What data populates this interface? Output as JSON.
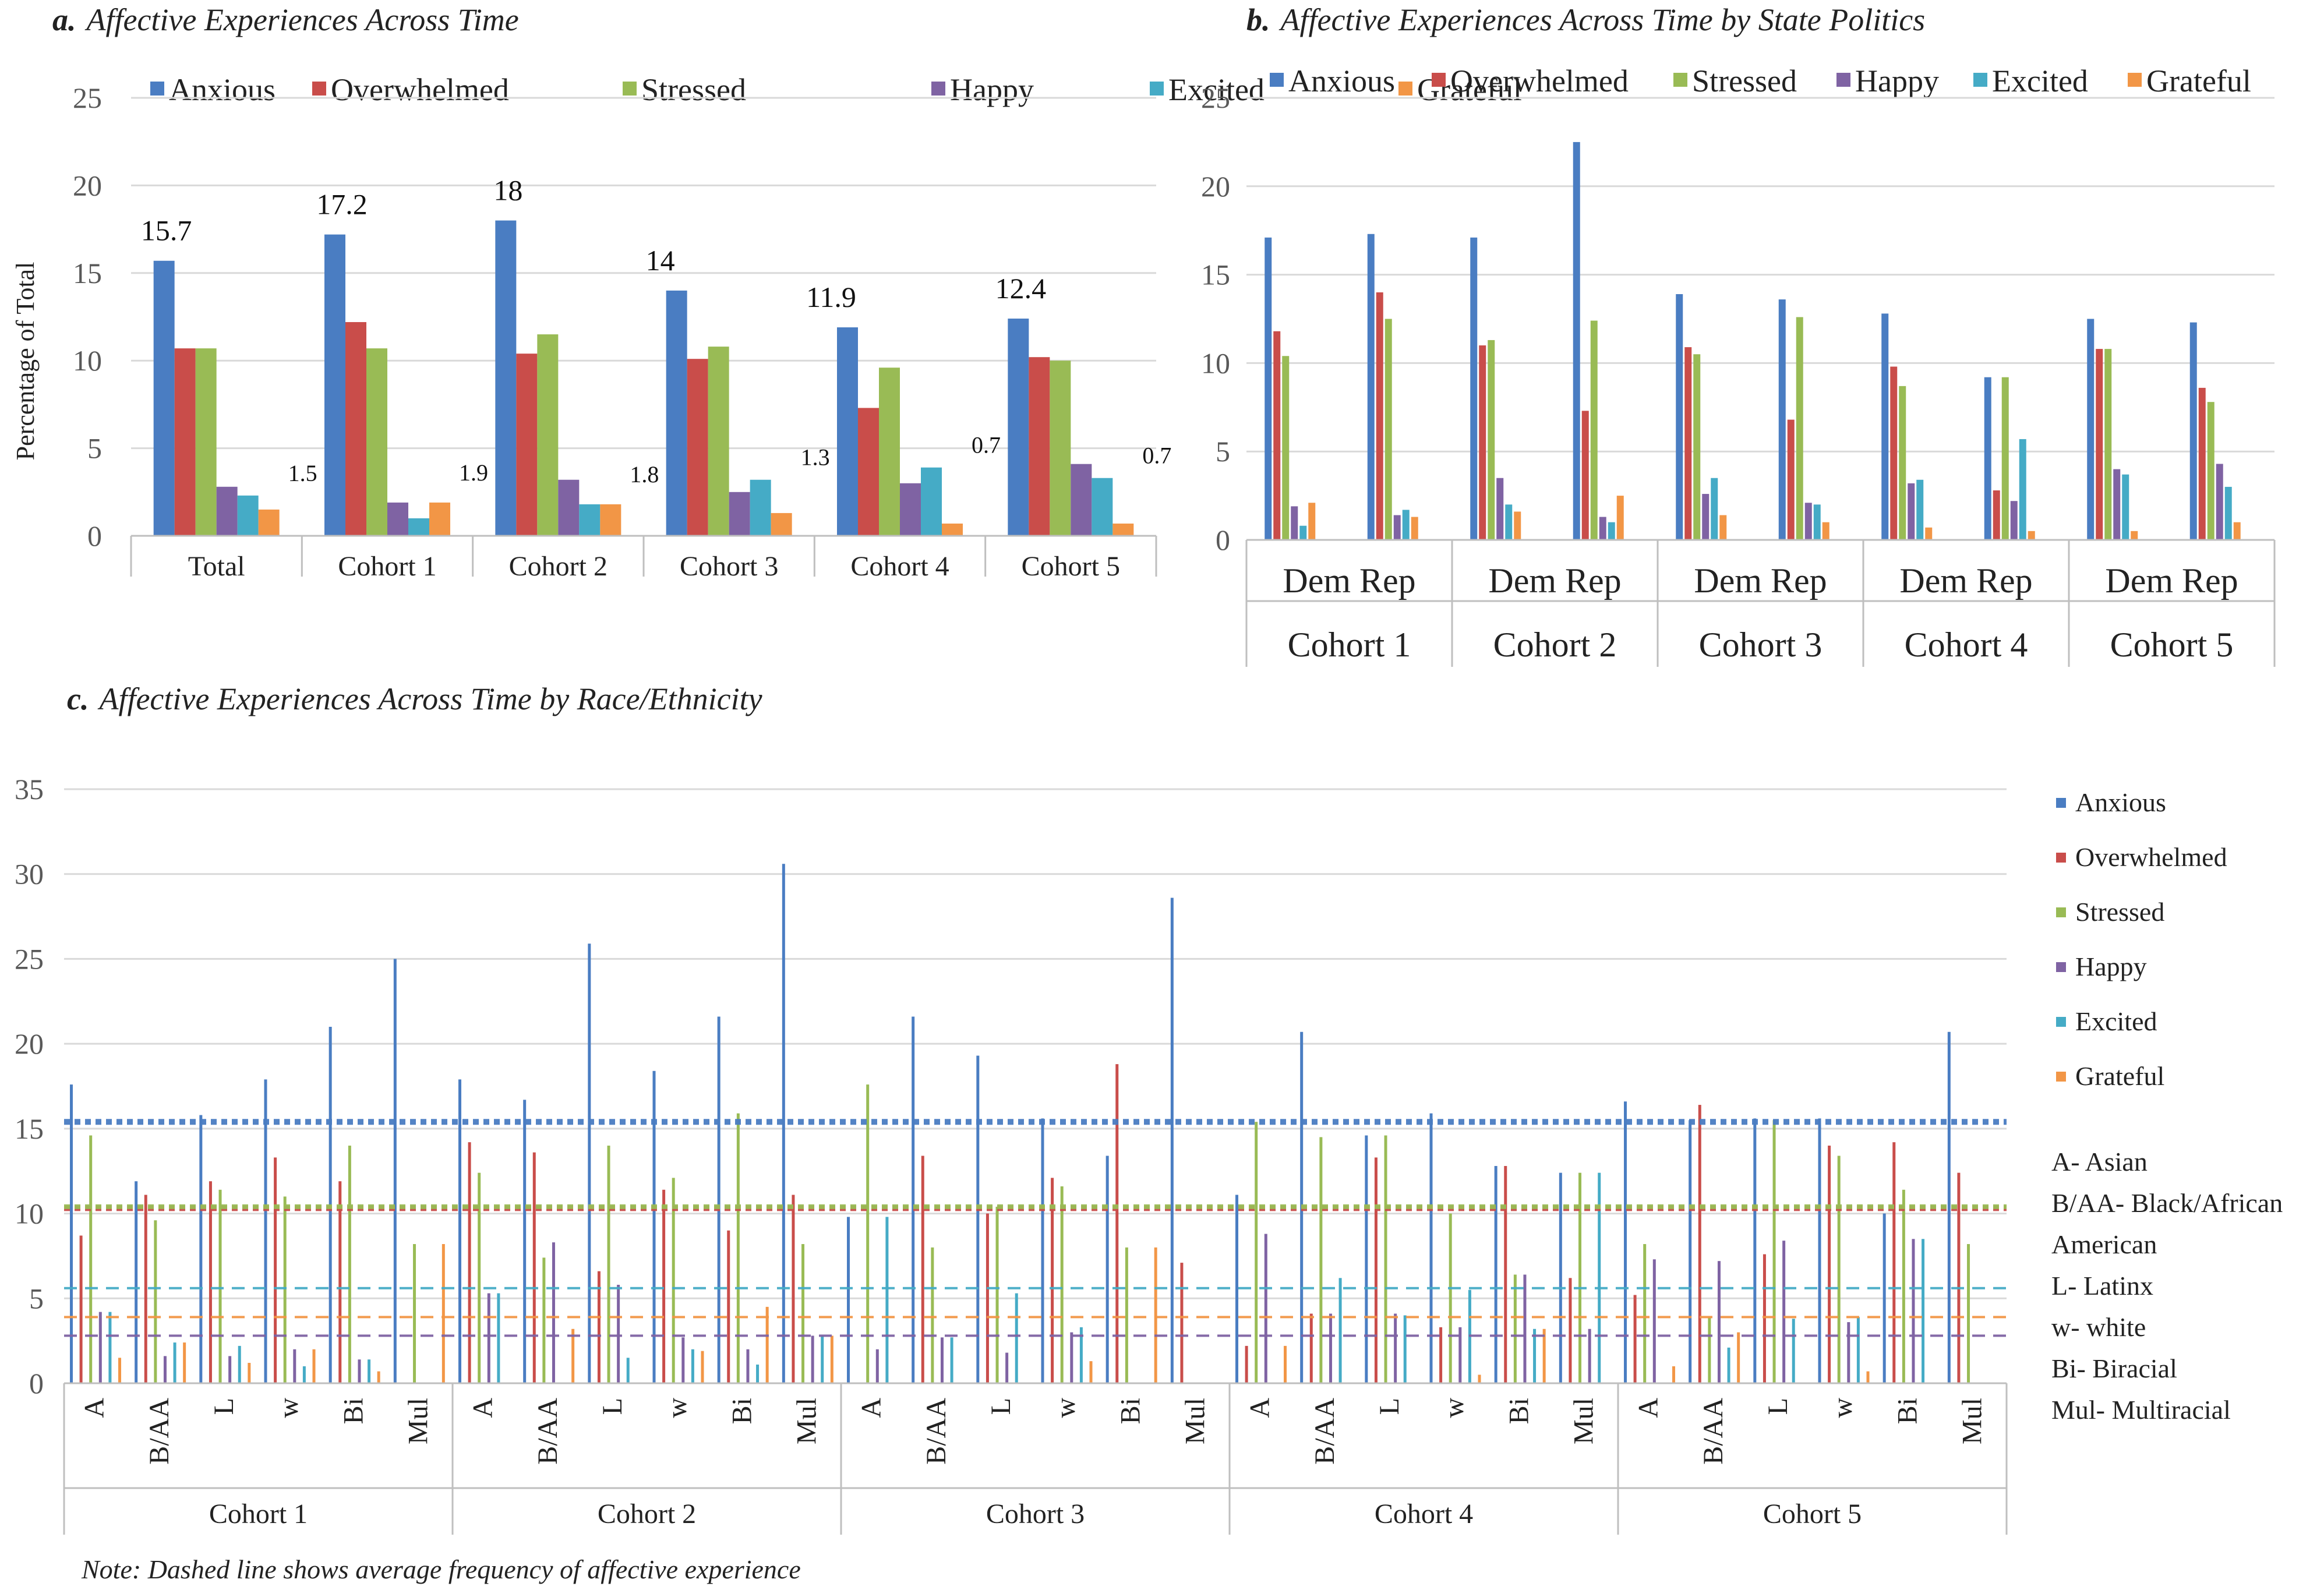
{
  "colors": {
    "Anxious": "#4a7dc2",
    "Overwhelmed": "#c94d4a",
    "Stressed": "#99bb55",
    "Happy": "#7f63a3",
    "Excited": "#45abc6",
    "Grateful": "#f29646"
  },
  "series_names": [
    "Anxious",
    "Overwhelmed",
    "Stressed",
    "Happy",
    "Excited",
    "Grateful"
  ],
  "chart_data": [
    {
      "id": "a",
      "type": "bar",
      "letter": "a.",
      "title": "Affective Experiences Across Time",
      "ylabel": "Percentage of Total",
      "ylim": [
        0,
        25
      ],
      "yticks": [
        "0",
        "5",
        "10",
        "15",
        "20",
        "25"
      ],
      "categories": [
        "Total",
        "Cohort 1",
        "Cohort 2",
        "Cohort 3",
        "Cohort 4",
        "Cohort 5"
      ],
      "legend": "top",
      "series": [
        {
          "name": "Anxious",
          "values": [
            15.7,
            17.2,
            18,
            14,
            11.9,
            12.4
          ]
        },
        {
          "name": "Overwhelmed",
          "values": [
            10.7,
            12.2,
            10.4,
            10.1,
            7.3,
            10.2
          ]
        },
        {
          "name": "Stressed",
          "values": [
            10.7,
            10.7,
            11.5,
            10.8,
            9.6,
            10.0
          ]
        },
        {
          "name": "Happy",
          "values": [
            2.8,
            1.9,
            3.2,
            2.5,
            3.0,
            4.1
          ]
        },
        {
          "name": "Excited",
          "values": [
            2.3,
            1.0,
            1.8,
            3.2,
            3.9,
            3.3
          ]
        },
        {
          "name": "Grateful",
          "values": [
            1.5,
            1.9,
            1.8,
            1.3,
            0.7,
            0.7
          ]
        }
      ],
      "annotations": {
        "Anxious": [
          "15.7",
          "17.2",
          "18",
          "14",
          "11.9",
          "12.4"
        ],
        "Grateful": [
          "1.5",
          "1.9",
          "1.8",
          "1.3",
          "0.7",
          "0.7"
        ]
      }
    },
    {
      "id": "b",
      "type": "bar",
      "letter": "b.",
      "title": "Affective Experiences Across Time by State Politics",
      "ylim": [
        0,
        25
      ],
      "yticks": [
        "0",
        "5",
        "10",
        "15",
        "20",
        "25"
      ],
      "groups": [
        "Cohort 1",
        "Cohort 2",
        "Cohort 3",
        "Cohort 4",
        "Cohort 5"
      ],
      "subcategories": [
        "Dem",
        "Rep"
      ],
      "legend": "top",
      "series": [
        {
          "name": "Anxious",
          "values": [
            17.1,
            17.3,
            17.1,
            22.5,
            13.9,
            13.6,
            12.8,
            9.2,
            12.5,
            12.3
          ]
        },
        {
          "name": "Overwhelmed",
          "values": [
            11.8,
            14.0,
            11.0,
            7.3,
            10.9,
            6.8,
            9.8,
            2.8,
            10.8,
            8.6
          ]
        },
        {
          "name": "Stressed",
          "values": [
            10.4,
            12.5,
            11.3,
            12.4,
            10.5,
            12.6,
            8.7,
            9.2,
            10.8,
            7.8
          ]
        },
        {
          "name": "Happy",
          "values": [
            1.9,
            1.4,
            3.5,
            1.3,
            2.6,
            2.1,
            3.2,
            2.2,
            4.0,
            4.3
          ]
        },
        {
          "name": "Excited",
          "values": [
            0.8,
            1.7,
            2.0,
            1.0,
            3.5,
            2.0,
            3.4,
            5.7,
            3.7,
            3.0
          ]
        },
        {
          "name": "Grateful",
          "values": [
            2.1,
            1.3,
            1.6,
            2.5,
            1.4,
            1.0,
            0.7,
            0.5,
            0.5,
            1.0
          ]
        }
      ]
    },
    {
      "id": "c",
      "type": "bar",
      "letter": "c.",
      "title": "Affective Experiences Across Time by Race/Ethnicity",
      "ylim": [
        0,
        35
      ],
      "yticks": [
        "0",
        "5",
        "10",
        "15",
        "20",
        "25",
        "30",
        "35"
      ],
      "groups": [
        "Cohort 1",
        "Cohort 2",
        "Cohort 3",
        "Cohort 4",
        "Cohort 5"
      ],
      "subcategories": [
        "A",
        "B/AA",
        "L",
        "w",
        "Bi",
        "Mul"
      ],
      "legend": "right",
      "series": [
        {
          "name": "Anxious",
          "values": [
            17.6,
            11.9,
            15.8,
            17.9,
            21.0,
            25.0,
            17.9,
            16.7,
            25.9,
            18.4,
            21.6,
            30.6,
            9.8,
            21.6,
            19.3,
            15.6,
            13.4,
            28.6,
            11.1,
            20.7,
            14.6,
            15.9,
            12.8,
            12.4,
            16.6,
            15.5,
            15.6,
            15.6,
            10.0,
            20.7
          ]
        },
        {
          "name": "Overwhelmed",
          "values": [
            8.7,
            11.1,
            11.9,
            13.3,
            11.9,
            0,
            14.2,
            13.6,
            6.6,
            11.4,
            9.0,
            11.1,
            0,
            13.4,
            10.0,
            12.1,
            18.8,
            7.1,
            2.2,
            4.1,
            13.3,
            3.3,
            12.8,
            6.2,
            5.2,
            16.4,
            7.6,
            14.0,
            14.2,
            12.4
          ]
        },
        {
          "name": "Stressed",
          "values": [
            14.6,
            9.6,
            11.4,
            11.0,
            14.0,
            8.2,
            12.4,
            7.4,
            14.0,
            12.1,
            15.9,
            8.2,
            17.6,
            8.0,
            10.4,
            11.6,
            8.0,
            0,
            15.4,
            14.5,
            14.6,
            10.0,
            6.4,
            12.4,
            8.2,
            3.9,
            15.5,
            13.4,
            11.4,
            8.2
          ]
        },
        {
          "name": "Happy",
          "values": [
            4.2,
            1.6,
            1.6,
            2.0,
            1.4,
            0,
            5.3,
            8.3,
            5.8,
            2.7,
            2.0,
            2.8,
            2.0,
            2.7,
            1.8,
            3.0,
            0,
            0,
            8.8,
            4.1,
            4.1,
            3.3,
            6.4,
            3.2,
            7.3,
            7.2,
            8.4,
            3.6,
            8.5,
            0
          ]
        },
        {
          "name": "Excited",
          "values": [
            4.2,
            2.4,
            2.2,
            1.0,
            1.4,
            0,
            5.3,
            0,
            1.5,
            2.0,
            1.1,
            2.8,
            9.8,
            2.7,
            5.3,
            3.3,
            0,
            0,
            0,
            6.2,
            4.0,
            5.5,
            3.2,
            12.4,
            0,
            2.1,
            3.8,
            3.9,
            8.5,
            0
          ]
        },
        {
          "name": "Grateful",
          "values": [
            1.5,
            2.4,
            1.2,
            2.0,
            0.7,
            8.2,
            0,
            3.2,
            0,
            1.9,
            4.5,
            2.8,
            0,
            0,
            0,
            1.3,
            8.0,
            0,
            2.2,
            0,
            0,
            0.5,
            3.2,
            0,
            1.0,
            3.0,
            0,
            0.7,
            0,
            0
          ]
        }
      ],
      "averages": {
        "Anxious": 15.4,
        "Overwhelmed": 10.3,
        "Stressed": 10.4,
        "Happy": 2.8,
        "Excited": 5.6,
        "Grateful": 3.9
      },
      "legend_key": [
        "A- Asian",
        "B/AA- Black/African",
        "American",
        "L- Latinx",
        "w- white",
        "Bi- Biracial",
        "Mul- Multiracial"
      ],
      "note": "Note: Dashed line shows average frequency of affective experience"
    }
  ]
}
